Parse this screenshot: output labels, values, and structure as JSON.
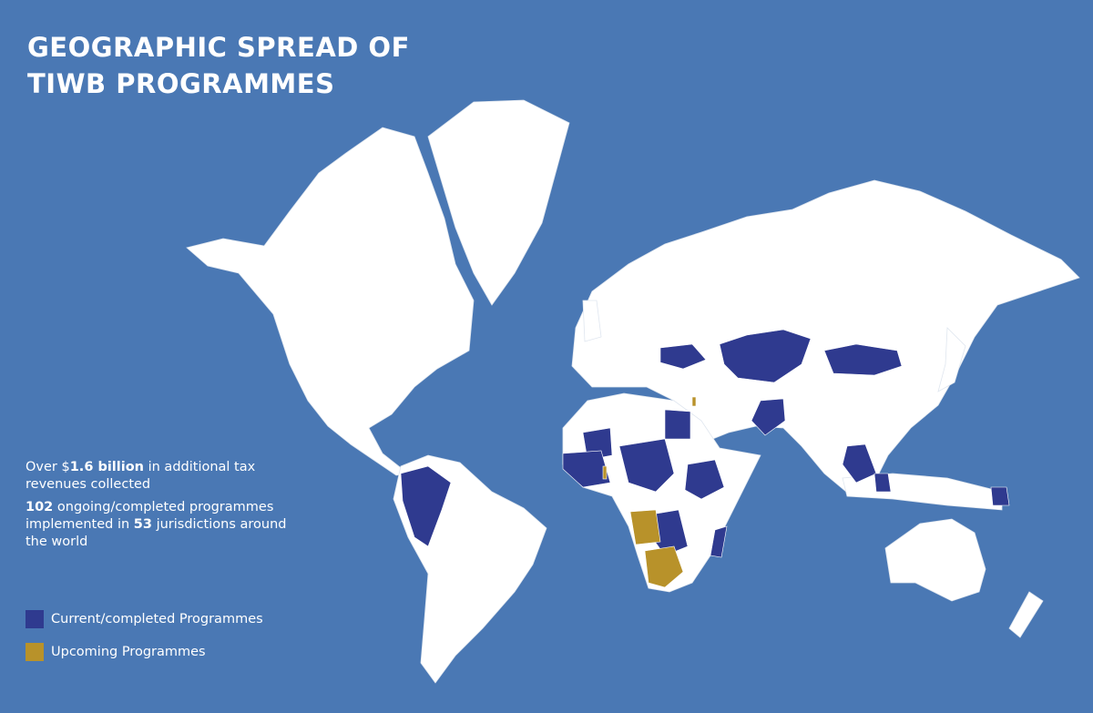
{
  "header": {
    "title_lines": [
      "GEOGRAPHIC SPREAD OF",
      "TIWB PROGRAMMES"
    ]
  },
  "stats": [
    {
      "parts": [
        "Over $",
        "1.6 billion",
        " in additional tax revenues collected"
      ],
      "bold": [
        false,
        true,
        false
      ]
    },
    {
      "parts": [
        "102",
        " ongoing/completed programmes implemented in ",
        "53",
        " jurisdictions around the world"
      ],
      "bold": [
        true,
        false,
        true,
        false
      ]
    }
  ],
  "legend": [
    {
      "label": "Current/completed Programmes",
      "color": "#2f3a8f"
    },
    {
      "label": "Upcoming Programmes",
      "color": "#b8922a"
    }
  ]
}
